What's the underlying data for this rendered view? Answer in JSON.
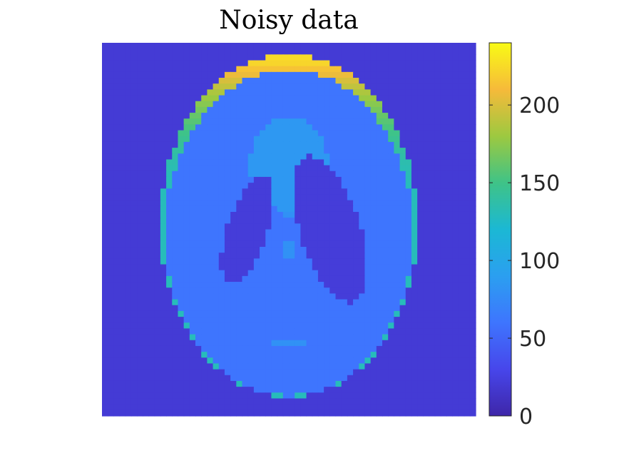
{
  "chart_data": {
    "type": "heatmap",
    "title": "Noisy data",
    "subject": "Shepp-Logan phantom",
    "axes_visible": false,
    "colormap": "parula",
    "colorbar": {
      "location": "right",
      "min": 0,
      "max": 240,
      "ticks": [
        0,
        50,
        100,
        150,
        200
      ],
      "tick_labels": [
        "0",
        "50",
        "100",
        "150",
        "200"
      ]
    },
    "grid": {
      "rows": 64,
      "cols": 64
    },
    "image_regions": [
      {
        "name": "background",
        "value": 20
      },
      {
        "name": "skull-rim-top",
        "value": 225
      },
      {
        "name": "skull-rim-sides",
        "value": 130
      },
      {
        "name": "brain-tissue",
        "value": 60
      },
      {
        "name": "left-ventricle",
        "value": 22
      },
      {
        "name": "right-ventricle",
        "value": 22
      },
      {
        "name": "central-blob",
        "value": 85
      },
      {
        "name": "small-spots",
        "value": 80
      }
    ]
  }
}
